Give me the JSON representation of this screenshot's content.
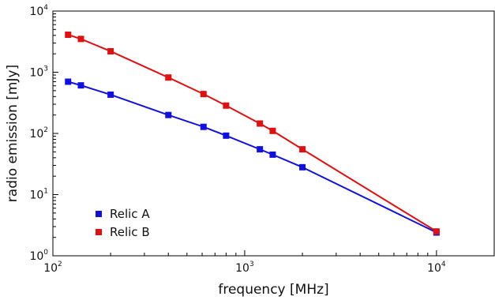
{
  "chart_data": {
    "type": "line",
    "title": "",
    "xlabel": "frequency [MHz]",
    "ylabel": "radio emission [mJy]",
    "x_scale": "log",
    "y_scale": "log",
    "xlim": [
      100,
      20000
    ],
    "ylim": [
      1,
      10000
    ],
    "grid": false,
    "legend_position": "bottom-left",
    "x_ticks": [
      {
        "base": "10",
        "exp": "2",
        "value": 100
      },
      {
        "base": "10",
        "exp": "3",
        "value": 1000
      },
      {
        "base": "10",
        "exp": "4",
        "value": 10000
      }
    ],
    "y_ticks": [
      {
        "base": "10",
        "exp": "0",
        "value": 1
      },
      {
        "base": "10",
        "exp": "1",
        "value": 10
      },
      {
        "base": "10",
        "exp": "2",
        "value": 100
      },
      {
        "base": "10",
        "exp": "3",
        "value": 1000
      },
      {
        "base": "10",
        "exp": "4",
        "value": 10000
      }
    ],
    "series": [
      {
        "name": "Relic A",
        "color": "#1010e0",
        "x": [
          120,
          140,
          200,
          400,
          610,
          800,
          1200,
          1400,
          2000,
          10000
        ],
        "y": [
          700,
          610,
          430,
          200,
          128,
          92,
          55,
          45,
          28,
          2.4
        ]
      },
      {
        "name": "Relic B",
        "color": "#e01010",
        "x": [
          120,
          140,
          200,
          400,
          610,
          800,
          1200,
          1400,
          2000,
          10000
        ],
        "y": [
          4100,
          3500,
          2200,
          820,
          440,
          285,
          145,
          110,
          55,
          2.5
        ]
      }
    ]
  }
}
